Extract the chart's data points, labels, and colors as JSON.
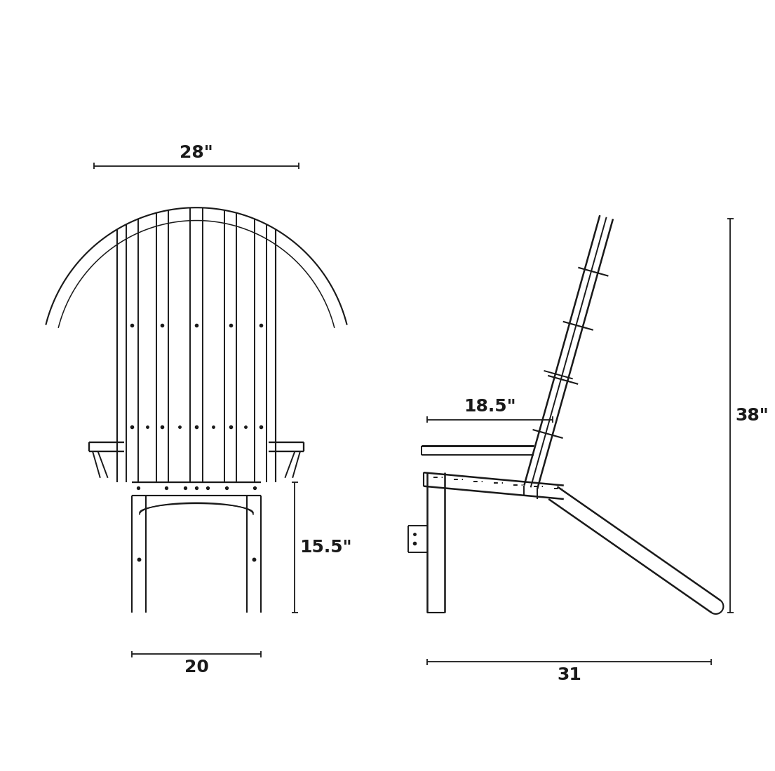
{
  "bg_color": "#ffffff",
  "line_color": "#1a1a1a",
  "lw": 1.4,
  "dim_font_size": 18,
  "dim_label_28": "28\"",
  "dim_label_20": "20",
  "dim_label_155": "15.5\"",
  "dim_label_185": "18.5\"",
  "dim_label_31": "31",
  "dim_label_38": "38\""
}
